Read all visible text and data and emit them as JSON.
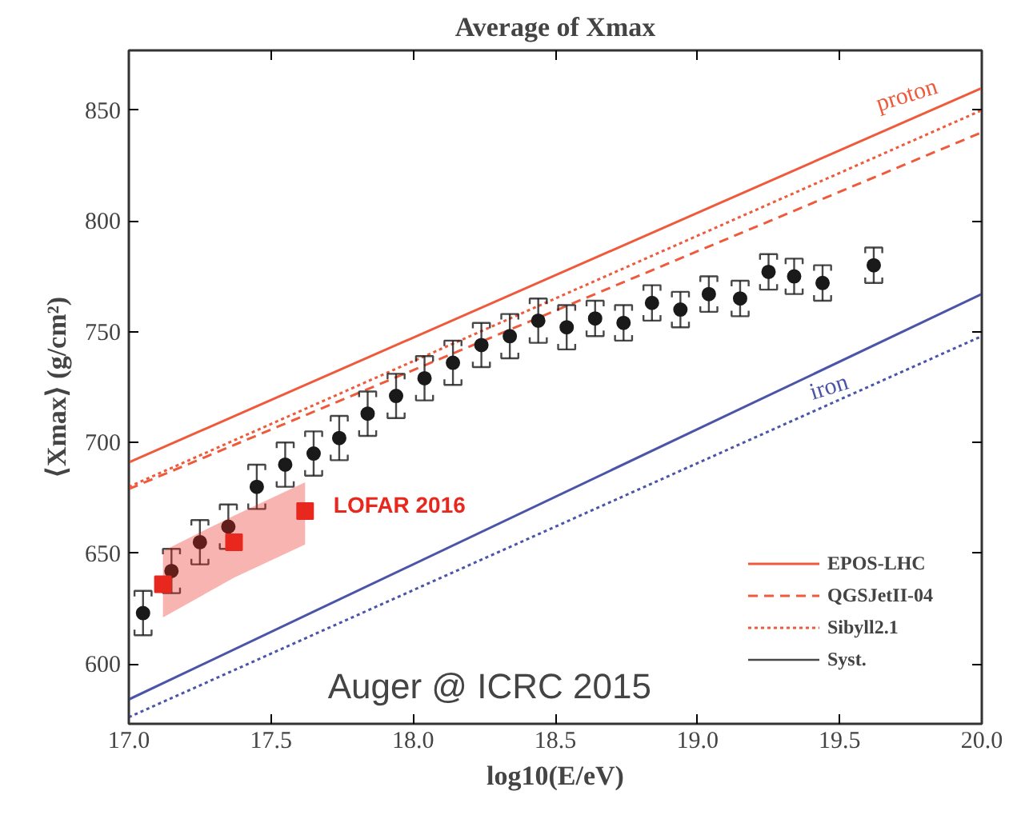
{
  "chart_data": {
    "type": "scatter",
    "title": "Average of Xmax",
    "xlabel": "log10(E/eV)",
    "ylabel": "⟨Xmax⟩ (g/cm²)",
    "xlim": [
      17,
      20
    ],
    "ylim": [
      573,
      877
    ],
    "xticks": [
      {
        "value": 17,
        "label": "17.0"
      },
      {
        "value": 17.5,
        "label": "17.5"
      },
      {
        "value": 18,
        "label": "18.0"
      },
      {
        "value": 18.5,
        "label": "18.5"
      },
      {
        "value": 19,
        "label": "19.0"
      },
      {
        "value": 19.5,
        "label": "19.5"
      },
      {
        "value": 20,
        "label": "20.0"
      }
    ],
    "yticks": [
      600,
      650,
      700,
      750,
      800,
      850
    ],
    "grid": false,
    "legend": "bottom right",
    "annotations": [
      "Auger @ ICRC 2015",
      {
        "text": "proton",
        "x": 19.75,
        "y": 848
      },
      {
        "text": "iron",
        "x": 19.45,
        "y": 733
      }
    ],
    "series": [
      {
        "type": "line",
        "name": "EPOS-LHC",
        "color": "#ef5a3c",
        "x": [
          17,
          20
        ],
        "values": [
          691,
          860
        ],
        "line_style": "solid"
      },
      {
        "type": "line",
        "name": "QGSJetII-04",
        "color": "#ef5a3c",
        "x": [
          17,
          20
        ],
        "values": [
          679,
          840
        ],
        "line_style": "dashed"
      },
      {
        "type": "line",
        "name": "Sibyll2.1",
        "color": "#ef5a3c",
        "x": [
          17,
          20
        ],
        "values": [
          680,
          850
        ],
        "line_style": "dotted"
      },
      {
        "type": "line",
        "color": "#4b55a8",
        "x": [
          17,
          20
        ],
        "values": [
          584,
          767
        ],
        "line_style": "solid"
      },
      {
        "type": "line",
        "color": "#4b55a8",
        "x": [
          17,
          20
        ],
        "values": [
          576,
          748
        ],
        "line_style": "dotted"
      },
      {
        "name": "Syst.",
        "color": "#1a1a1a",
        "marker": "circle",
        "x": [
          17.05,
          17.15,
          17.25,
          17.35,
          17.45,
          17.55,
          17.65,
          17.74,
          17.84,
          17.94,
          18.04,
          18.14,
          18.24,
          18.34,
          18.44,
          18.54,
          18.64,
          18.74,
          18.84,
          18.94,
          19.04,
          19.15,
          19.25,
          19.34,
          19.44,
          19.62
        ],
        "values": [
          623,
          642,
          655,
          662,
          680,
          690,
          695,
          702,
          713,
          721,
          729,
          736,
          744,
          748,
          755,
          752,
          756,
          754,
          763,
          760,
          767,
          765,
          777,
          775,
          772,
          780
        ],
        "errors": [
          [
            613,
            633
          ],
          [
            632,
            652
          ],
          [
            645,
            665
          ],
          [
            652,
            672
          ],
          [
            670,
            690
          ],
          [
            680,
            700
          ],
          [
            685,
            705
          ],
          [
            692,
            712
          ],
          [
            703,
            723
          ],
          [
            711,
            731
          ],
          [
            719,
            739
          ],
          [
            726,
            746
          ],
          [
            734,
            754
          ],
          [
            738,
            758
          ],
          [
            745,
            765
          ],
          [
            742,
            762
          ],
          [
            748,
            764
          ],
          [
            746,
            762
          ],
          [
            755,
            771
          ],
          [
            752,
            768
          ],
          [
            759,
            775
          ],
          [
            757,
            773
          ],
          [
            769,
            785
          ],
          [
            767,
            783
          ],
          [
            764,
            780
          ],
          [
            772,
            788
          ]
        ]
      },
      {
        "name": "LOFAR 2016",
        "color": "#e8281e",
        "marker": "square",
        "x": [
          17.12,
          17.37,
          17.62
        ],
        "values": [
          636,
          655,
          669
        ],
        "lower": [
          621,
          639,
          654
        ],
        "upper": [
          651,
          667,
          682
        ]
      }
    ]
  }
}
